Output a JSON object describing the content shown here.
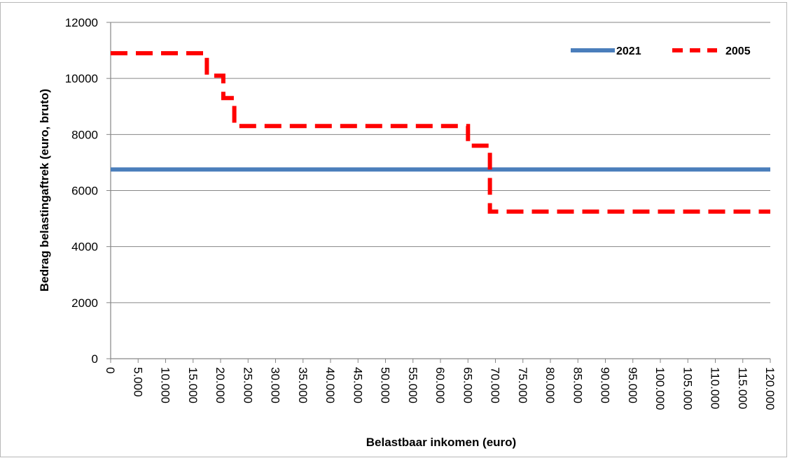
{
  "caption_fragment": "",
  "chart_data": {
    "type": "line",
    "title": "",
    "xlabel": "Belastbaar inkomen (euro)",
    "ylabel": "Bedrag belastingaftrek (euro, bruto)",
    "xlim": [
      0,
      120000
    ],
    "ylim": [
      0,
      12000
    ],
    "x_ticks": [
      0,
      5000,
      10000,
      15000,
      20000,
      25000,
      30000,
      35000,
      40000,
      45000,
      50000,
      55000,
      60000,
      65000,
      70000,
      75000,
      80000,
      85000,
      90000,
      95000,
      100000,
      105000,
      110000,
      115000,
      120000
    ],
    "x_tick_labels": [
      "0",
      "5.000",
      "10.000",
      "15.000",
      "20.000",
      "25.000",
      "30.000",
      "35.000",
      "40.000",
      "45.000",
      "50.000",
      "55.000",
      "60.000",
      "65.000",
      "70.000",
      "75.000",
      "80.000",
      "85.000",
      "90.000",
      "95.000",
      "100.000",
      "105.000",
      "110.000",
      "115.000",
      "120.000"
    ],
    "y_ticks": [
      0,
      2000,
      4000,
      6000,
      8000,
      10000,
      12000
    ],
    "y_tick_labels": [
      "0",
      "2000",
      "4000",
      "6000",
      "8000",
      "10000",
      "12000"
    ],
    "grid": "horizontal",
    "legend": "top-right",
    "series": [
      {
        "name": "2021",
        "color": "#4a7ebb",
        "style": "solid",
        "x": [
          0,
          120000
        ],
        "y": [
          6750,
          6750
        ]
      },
      {
        "name": "2005",
        "color": "#ff0000",
        "style": "dashed",
        "x": [
          0,
          17500,
          17500,
          20500,
          20500,
          22500,
          22500,
          65000,
          65000,
          69000,
          69000,
          120000
        ],
        "y": [
          10900,
          10900,
          10100,
          10100,
          9300,
          9300,
          8300,
          8300,
          7600,
          7600,
          5250,
          5250
        ]
      }
    ]
  }
}
